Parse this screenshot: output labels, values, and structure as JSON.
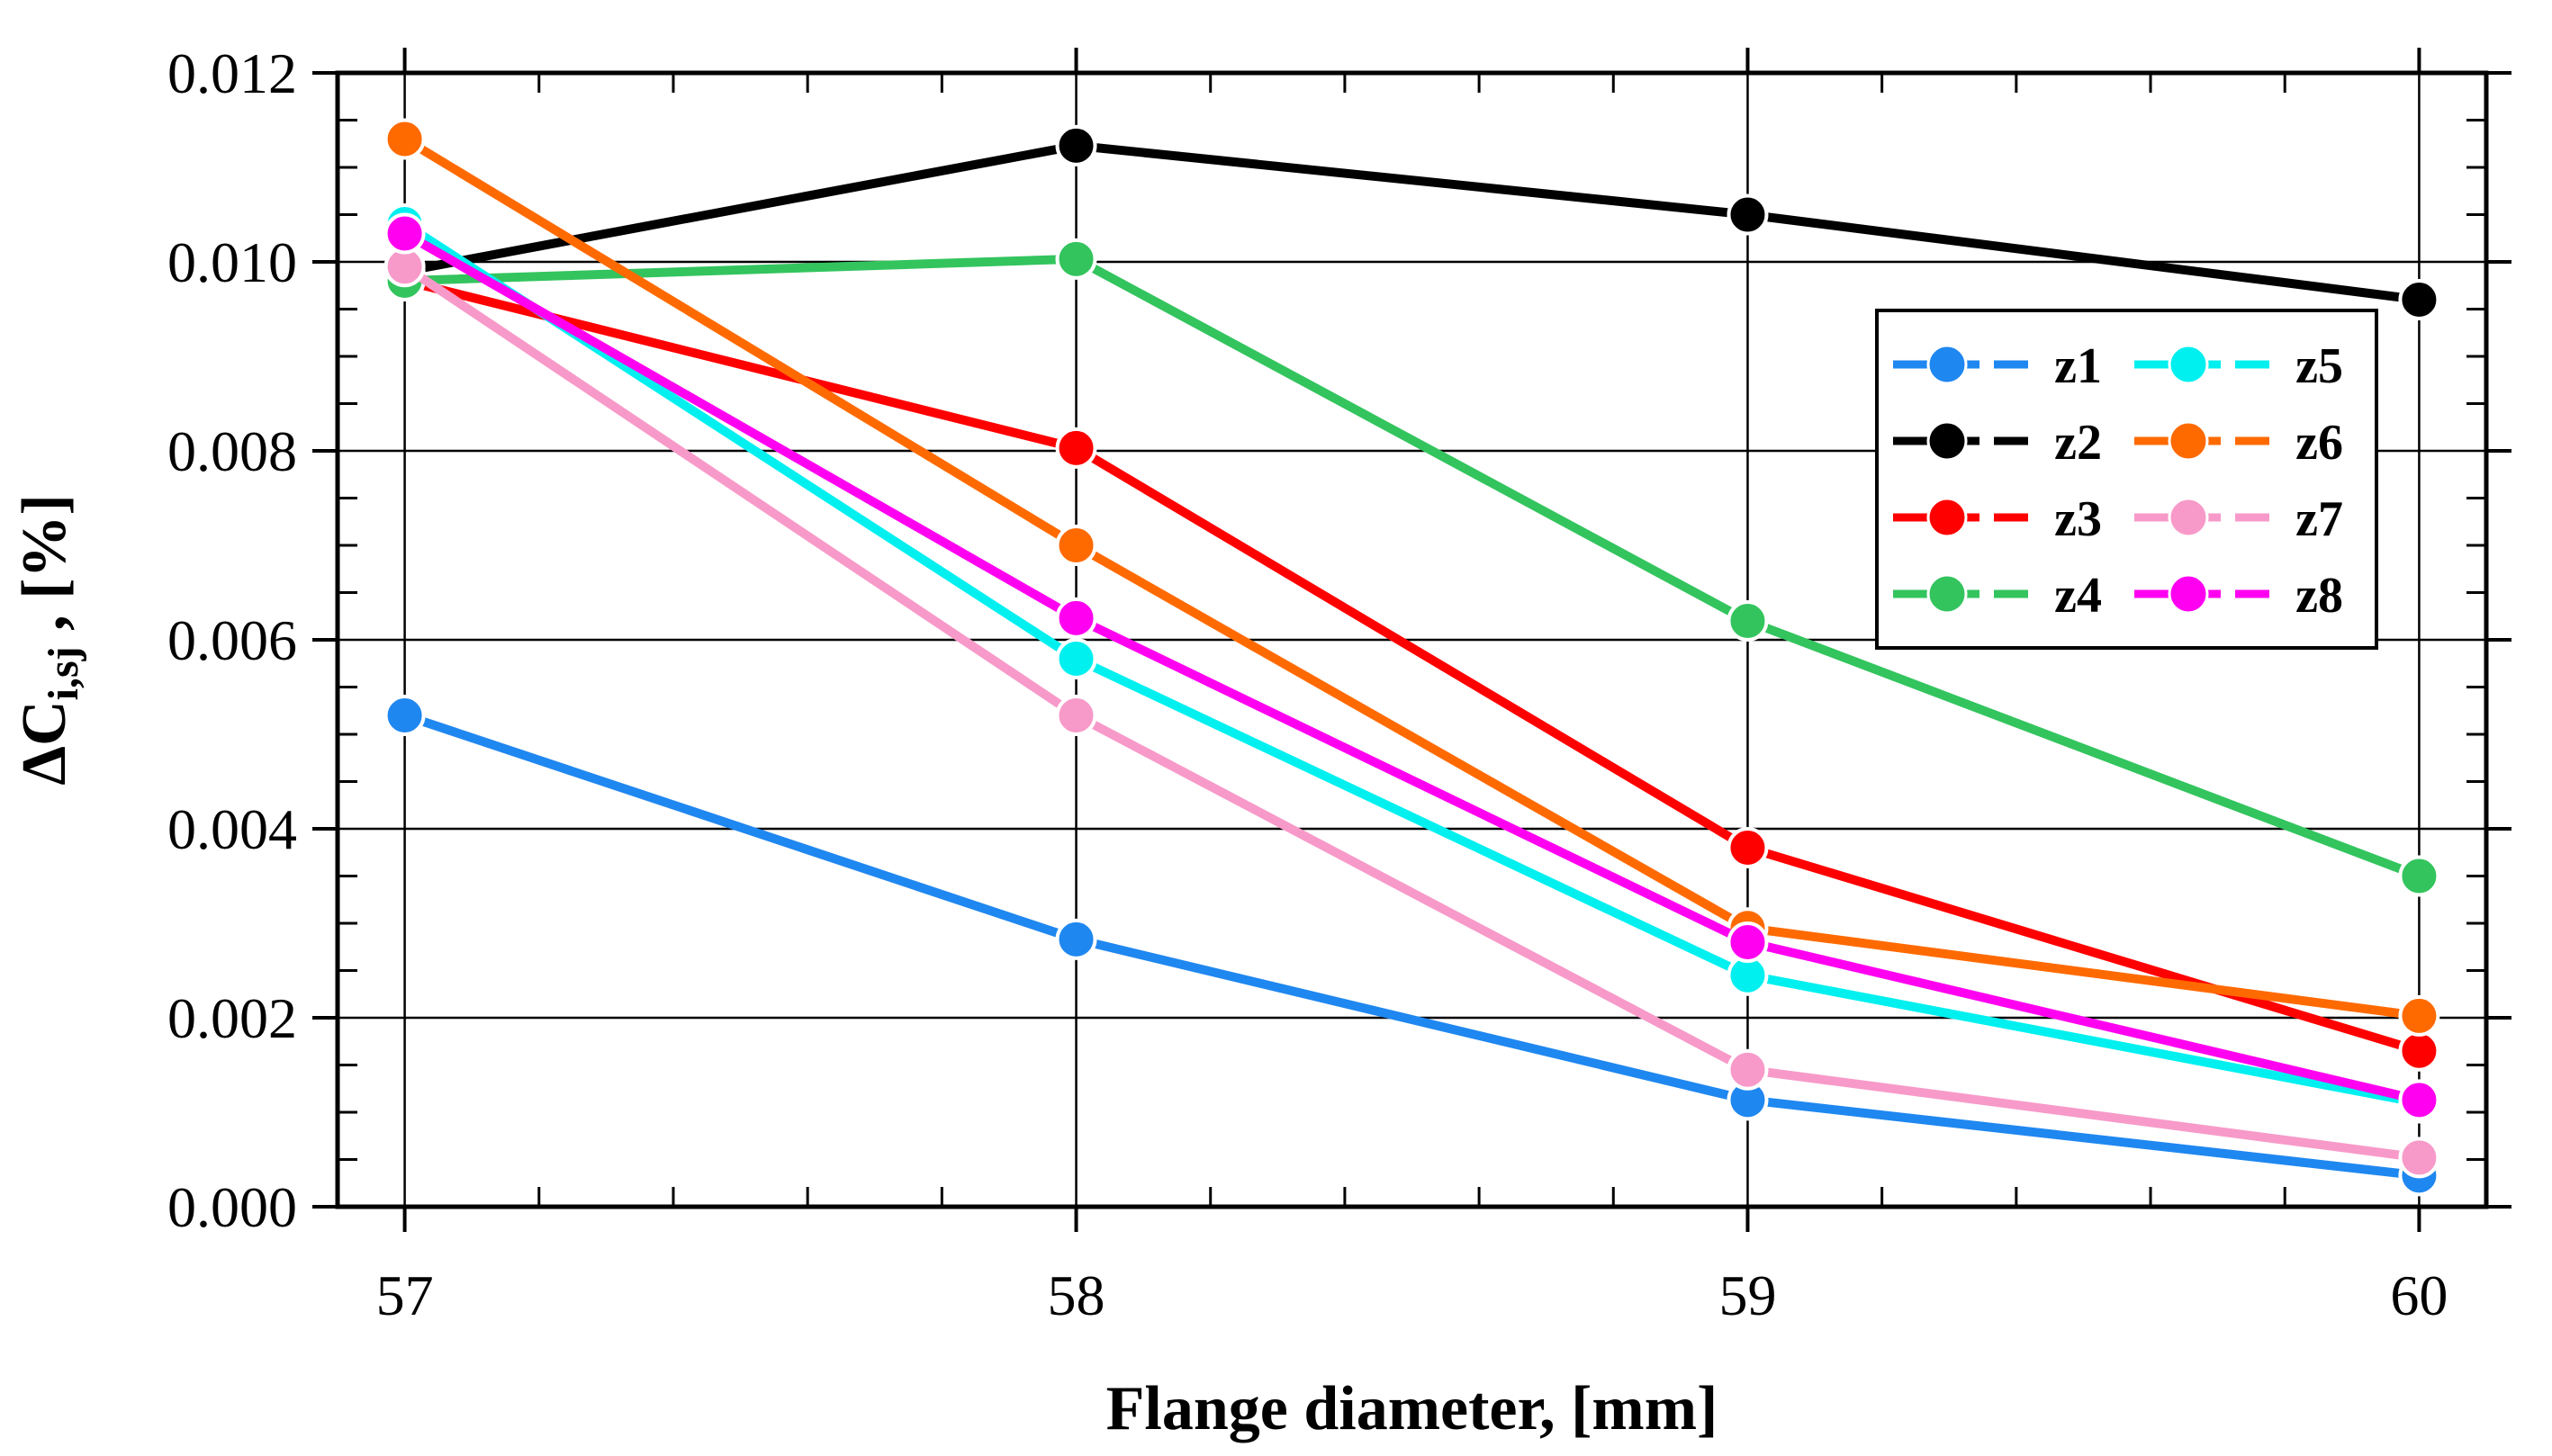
{
  "chart_data": {
    "type": "line",
    "title": "",
    "xlabel": "Flange diameter, [mm]",
    "ylabel_main": "ΔC",
    "ylabel_sub": "i,sj",
    "ylabel_suffix": " , [%]",
    "x": [
      57,
      58,
      59,
      60
    ],
    "x_tick_labels": [
      "57",
      "58",
      "59",
      "60"
    ],
    "xlim": [
      56.9,
      60.1
    ],
    "ylim": [
      0.0,
      0.012
    ],
    "y_ticks": [
      0.0,
      0.002,
      0.004,
      0.006,
      0.008,
      0.01,
      0.012
    ],
    "y_tick_labels": [
      "0.000",
      "0.002",
      "0.004",
      "0.006",
      "0.008",
      "0.010",
      "0.012"
    ],
    "grid": true,
    "legend_position": "right",
    "series": [
      {
        "name": "z1",
        "color": "#1f87f0",
        "values": [
          0.0052,
          0.00283,
          0.00113,
          0.00033
        ]
      },
      {
        "name": "z2",
        "color": "#000000",
        "values": [
          0.0099,
          0.01123,
          0.0105,
          0.0096
        ]
      },
      {
        "name": "z3",
        "color": "#ff0000",
        "values": [
          0.0098,
          0.00803,
          0.0038,
          0.00165
        ]
      },
      {
        "name": "z4",
        "color": "#33c45e",
        "values": [
          0.0098,
          0.01003,
          0.0062,
          0.0035
        ]
      },
      {
        "name": "z5",
        "color": "#00f0f0",
        "values": [
          0.0104,
          0.0058,
          0.00245,
          0.0011
        ]
      },
      {
        "name": "z6",
        "color": "#ff6a00",
        "values": [
          0.0113,
          0.007,
          0.00295,
          0.00202
        ]
      },
      {
        "name": "z7",
        "color": "#f79ac9",
        "values": [
          0.00995,
          0.0052,
          0.00145,
          0.00052
        ]
      },
      {
        "name": "z8",
        "color": "#ff00f0",
        "values": [
          0.0103,
          0.00623,
          0.0028,
          0.00113
        ]
      }
    ]
  }
}
